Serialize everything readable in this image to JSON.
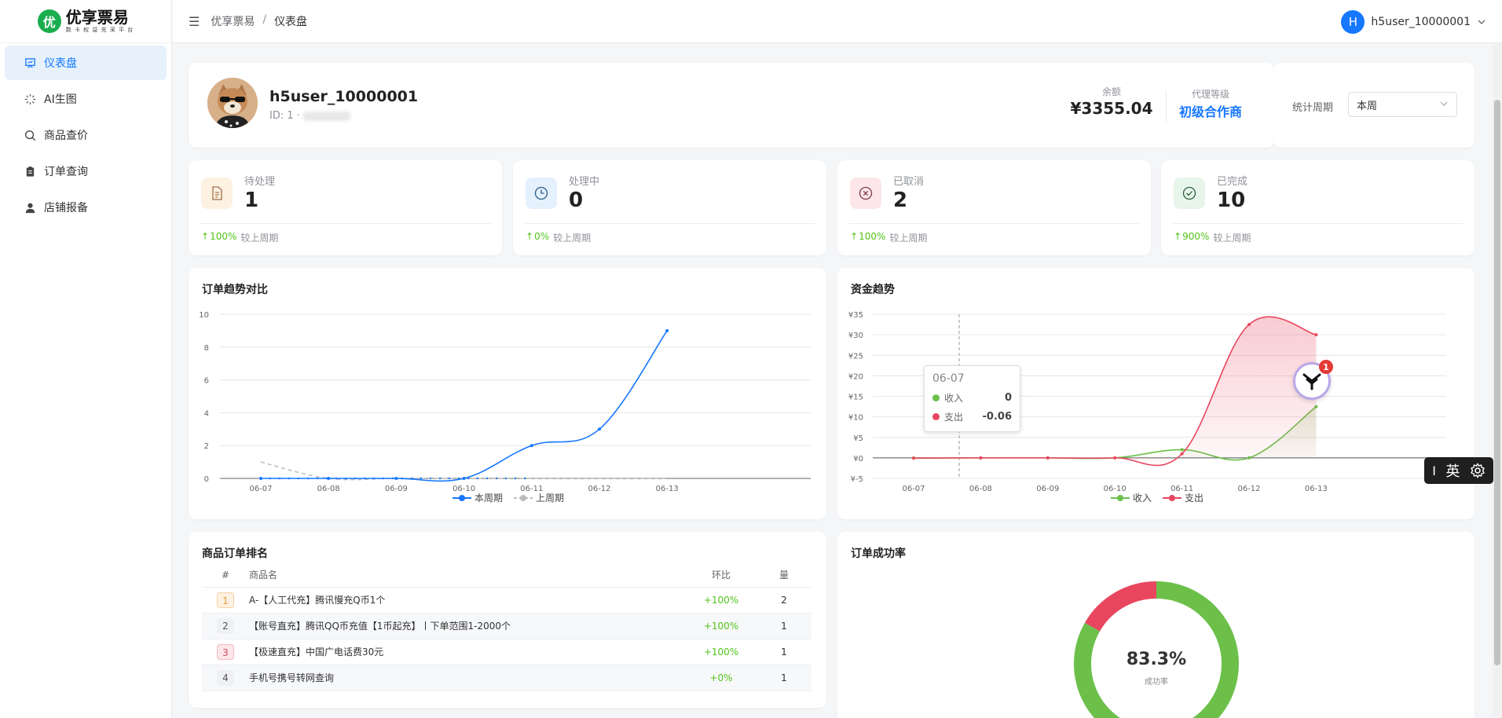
{
  "app": {
    "logo_mark": "优",
    "name": "优享票易",
    "tagline": "数 卡 权 益 充 采 平 台"
  },
  "sidebar": {
    "items": [
      {
        "label": "仪表盘",
        "icon": "dashboard-icon",
        "active": true
      },
      {
        "label": "AI生图",
        "icon": "sparkle-icon",
        "active": false
      },
      {
        "label": "商品查价",
        "icon": "search-icon",
        "active": false
      },
      {
        "label": "订单查询",
        "icon": "clipboard-icon",
        "active": false
      },
      {
        "label": "店铺报备",
        "icon": "user-icon",
        "active": false
      }
    ]
  },
  "header": {
    "breadcrumb": [
      "优享票易",
      "仪表盘"
    ],
    "separator": "/",
    "user_initial": "H",
    "username": "h5user_10000001"
  },
  "profile": {
    "name": "h5user_10000001",
    "id_text": "ID: 1 ·",
    "balance_label": "余额",
    "balance_value": "¥3355.04",
    "agent_label": "代理等级",
    "agent_value": "初级合作商"
  },
  "period": {
    "label": "统计周期",
    "selected": "本周"
  },
  "stats": [
    {
      "label": "待处理",
      "value": "1",
      "change": "100%",
      "compare": "较上周期",
      "icon": "document-icon",
      "bg": "#fdf1e2",
      "color": "#e69a3c"
    },
    {
      "label": "处理中",
      "value": "0",
      "change": "0%",
      "compare": "较上周期",
      "icon": "clock-icon",
      "bg": "#e4f0fc",
      "color": "#2f7fd6"
    },
    {
      "label": "已取消",
      "value": "2",
      "change": "100%",
      "compare": "较上周期",
      "icon": "cancel-icon",
      "bg": "#fce6ea",
      "color": "#d9485e"
    },
    {
      "label": "已完成",
      "value": "10",
      "change": "900%",
      "compare": "较上周期",
      "icon": "check-circle-icon",
      "bg": "#e7f5ea",
      "color": "#3aa55a"
    }
  ],
  "order_trend": {
    "title": "订单趋势对比",
    "legend": [
      "本周期",
      "上周期"
    ]
  },
  "fund_trend": {
    "title": "资金趋势",
    "legend": [
      "收入",
      "支出"
    ],
    "tooltip": {
      "date": "06-07",
      "rows": [
        {
          "label": "收入",
          "value": "0"
        },
        {
          "label": "支出",
          "value": "-0.06"
        }
      ]
    },
    "float_badge": "1"
  },
  "ranking": {
    "title": "商品订单排名",
    "headers": [
      "#",
      "商品名",
      "环比",
      "量"
    ],
    "rows": [
      {
        "rank": "1",
        "name": "A-【人工代充】腾讯慢充Q币1个",
        "ratio": "+100%",
        "qty": "2"
      },
      {
        "rank": "2",
        "name": "【账号直充】腾讯QQ币充值【1币起充】丨下单范围1-2000个",
        "ratio": "+100%",
        "qty": "1"
      },
      {
        "rank": "3",
        "name": "【极速直充】中国广电话费30元",
        "ratio": "+100%",
        "qty": "1"
      },
      {
        "rank": "4",
        "name": "手机号携号转网查询",
        "ratio": "+0%",
        "qty": "1"
      }
    ]
  },
  "success_rate": {
    "title": "订单成功率",
    "value": "83.3%",
    "label": "成功率"
  },
  "ime": {
    "cursor": "I",
    "lang": "英"
  },
  "chart_data": [
    {
      "type": "line",
      "title": "订单趋势对比",
      "x": [
        "06-07",
        "06-08",
        "06-09",
        "06-10",
        "06-11",
        "06-12",
        "06-13"
      ],
      "ylim": [
        0,
        10
      ],
      "yticks": [
        0,
        2,
        4,
        6,
        8,
        10
      ],
      "series": [
        {
          "name": "本周期",
          "values": [
            0,
            0,
            0,
            0,
            2,
            3,
            9
          ],
          "color": "#1677ff"
        },
        {
          "name": "上周期",
          "values": [
            1,
            0,
            0,
            0,
            0,
            0,
            0
          ],
          "color": "#bbbbbb"
        }
      ],
      "legend": "bottom-center",
      "grid": true
    },
    {
      "type": "area",
      "title": "资金趋势",
      "x": [
        "06-07",
        "06-08",
        "06-09",
        "06-10",
        "06-11",
        "06-12",
        "06-13"
      ],
      "ylim": [
        -5,
        35
      ],
      "yticks": [
        "¥-5",
        "¥0",
        "¥5",
        "¥10",
        "¥15",
        "¥20",
        "¥25",
        "¥30",
        "¥35"
      ],
      "ytick_values": [
        -5,
        0,
        5,
        10,
        15,
        20,
        25,
        30,
        35
      ],
      "series": [
        {
          "name": "收入",
          "values": [
            0,
            0,
            0,
            0,
            2,
            0,
            12.5
          ],
          "color": "#6cc04a"
        },
        {
          "name": "支出",
          "values": [
            -0.06,
            0,
            0,
            0,
            1,
            32.5,
            30
          ],
          "color": "#e8465f"
        }
      ],
      "legend": "bottom-center",
      "grid": true
    },
    {
      "type": "pie",
      "title": "订单成功率",
      "values": [
        83.3,
        16.7
      ],
      "colors": [
        "#6cc04a",
        "#e8465f"
      ]
    }
  ]
}
